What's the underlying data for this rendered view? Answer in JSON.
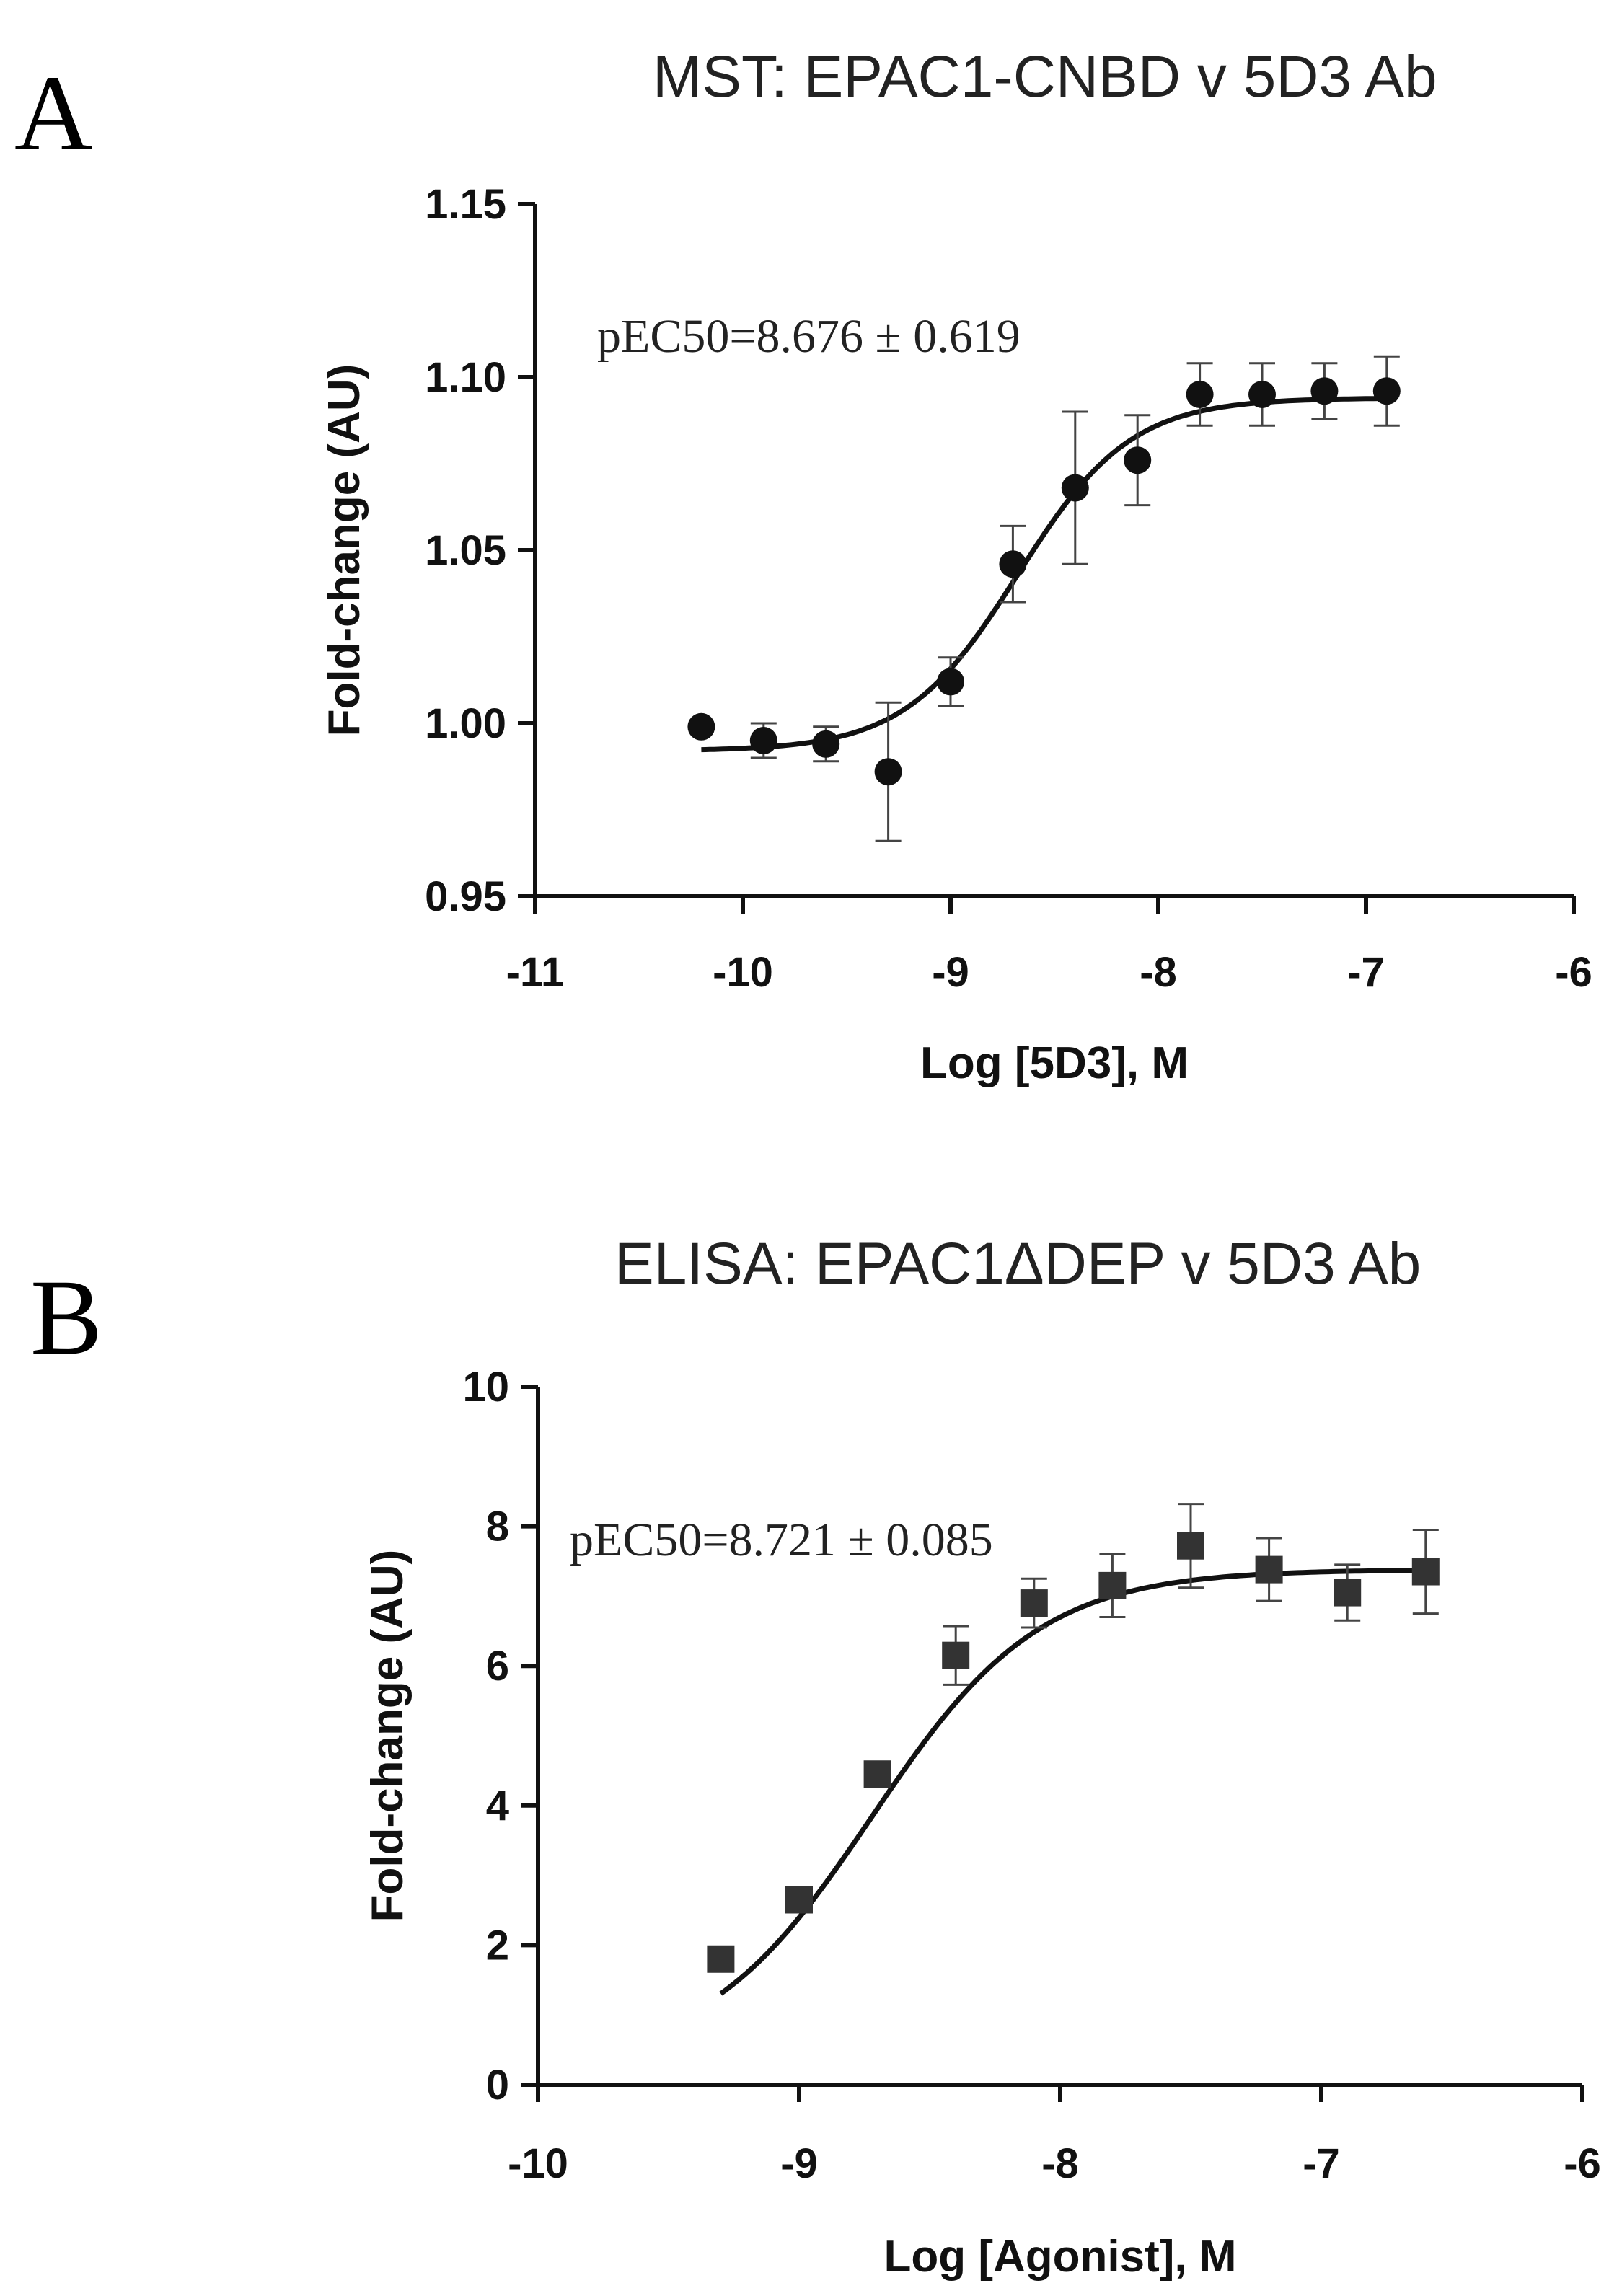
{
  "panels": {
    "a": {
      "letter": "A",
      "title": "MST: EPAC1-CNBD v 5D3 Ab"
    },
    "b": {
      "letter": "B",
      "title": "ELISA: EPAC1ΔDEP v 5D3 Ab"
    }
  },
  "chart_data": [
    {
      "type": "scatter",
      "title": "MST: EPAC1-CNBD v 5D3 Ab",
      "xlabel": "Log [5D3], M",
      "ylabel": "Fold-change (AU)",
      "xlim": [
        -11,
        -6
      ],
      "ylim": [
        0.95,
        1.15
      ],
      "xticks": [
        -11,
        -10,
        -9,
        -8,
        -7,
        -6
      ],
      "xtick_labels": [
        "-11",
        "-10",
        "-9",
        "-8",
        "-7",
        "-6"
      ],
      "yticks": [
        0.95,
        1.0,
        1.05,
        1.1,
        1.15
      ],
      "ytick_labels": [
        "0.95",
        "1.00",
        "1.05",
        "1.10",
        "1.15"
      ],
      "marker": "circle",
      "annotation": "pEC50=8.676 ± 0.619",
      "fit": {
        "bottom": 0.992,
        "top": 1.094,
        "logEC50": -8.676,
        "hill": 1.6
      },
      "points": [
        {
          "x": -10.2,
          "y": 0.999,
          "err": 0.0
        },
        {
          "x": -9.9,
          "y": 0.995,
          "err": 0.005
        },
        {
          "x": -9.6,
          "y": 0.994,
          "err": 0.005
        },
        {
          "x": -9.3,
          "y": 0.986,
          "err": 0.02
        },
        {
          "x": -9.0,
          "y": 1.012,
          "err": 0.007
        },
        {
          "x": -8.7,
          "y": 1.046,
          "err": 0.011
        },
        {
          "x": -8.4,
          "y": 1.068,
          "err": 0.022
        },
        {
          "x": -8.1,
          "y": 1.076,
          "err": 0.013
        },
        {
          "x": -7.8,
          "y": 1.095,
          "err": 0.009
        },
        {
          "x": -7.5,
          "y": 1.095,
          "err": 0.009
        },
        {
          "x": -7.2,
          "y": 1.096,
          "err": 0.008
        },
        {
          "x": -6.9,
          "y": 1.096,
          "err": 0.01
        }
      ]
    },
    {
      "type": "scatter",
      "title": "ELISA: EPAC1ΔDEP v 5D3 Ab",
      "xlabel": "Log [Agonist], M",
      "ylabel": "Fold-change (AU)",
      "xlim": [
        -10,
        -6
      ],
      "ylim": [
        0,
        10
      ],
      "xticks": [
        -10,
        -9,
        -8,
        -7,
        -6
      ],
      "xtick_labels": [
        "-10",
        "-9",
        "-8",
        "-7",
        "-6"
      ],
      "yticks": [
        0,
        2,
        4,
        6,
        8,
        10
      ],
      "ytick_labels": [
        "0",
        "2",
        "4",
        "6",
        "8",
        "10"
      ],
      "marker": "square",
      "annotation": "pEC50=8.721 ± 0.085",
      "fit": {
        "bottom": 0.3,
        "top": 7.38,
        "logEC50": -8.721,
        "hill": 1.35
      },
      "points": [
        {
          "x": -9.3,
          "y": 1.8,
          "err": 0.1
        },
        {
          "x": -9.0,
          "y": 2.65,
          "err": 0.1
        },
        {
          "x": -8.7,
          "y": 4.45,
          "err": 0.1
        },
        {
          "x": -8.4,
          "y": 6.15,
          "err": 0.42
        },
        {
          "x": -8.1,
          "y": 6.9,
          "err": 0.35
        },
        {
          "x": -7.8,
          "y": 7.15,
          "err": 0.45
        },
        {
          "x": -7.5,
          "y": 7.72,
          "err": 0.6
        },
        {
          "x": -7.2,
          "y": 7.38,
          "err": 0.45
        },
        {
          "x": -6.9,
          "y": 7.05,
          "err": 0.4
        },
        {
          "x": -6.6,
          "y": 7.35,
          "err": 0.6
        }
      ]
    }
  ]
}
